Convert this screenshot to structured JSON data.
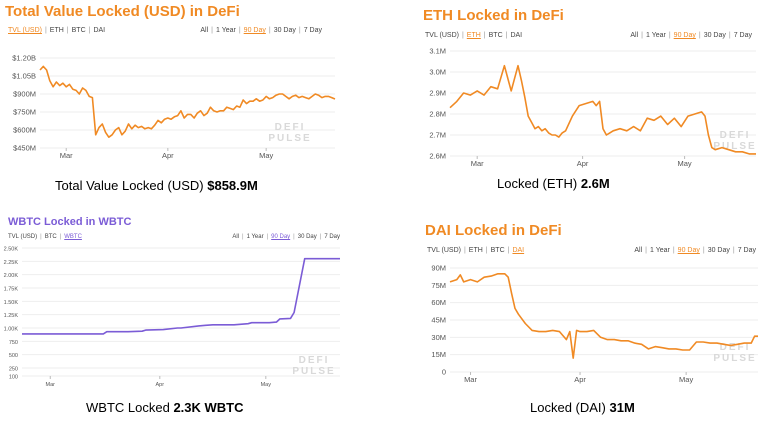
{
  "colors": {
    "accent": "#f08a24",
    "wbtc": "#7b5cd6",
    "grid": "#eeeeee",
    "axis": "#555555",
    "watermark": "#d9d9d9"
  },
  "watermark": [
    "DEFI",
    "PULSE"
  ],
  "panels": [
    {
      "title": "Total Value Locked (USD) in DeFi",
      "tabs_left": [
        "TVL (USD)",
        "ETH",
        "BTC",
        "DAI"
      ],
      "tabs_left_active": 0,
      "tabs_right": [
        "All",
        "1 Year",
        "90 Day",
        "30 Day",
        "7 Day"
      ],
      "tabs_right_active": 2,
      "caption": {
        "label": "Total Value Locked (USD)",
        "value": "$858.9M"
      }
    },
    {
      "title": "ETH Locked in DeFi",
      "tabs_left": [
        "TVL (USD)",
        "ETH",
        "BTC",
        "DAI"
      ],
      "tabs_left_active": 1,
      "tabs_right": [
        "All",
        "1 Year",
        "90 Day",
        "30 Day",
        "7 Day"
      ],
      "tabs_right_active": 2,
      "caption": {
        "label": "Locked (ETH)",
        "value": "2.6M"
      }
    },
    {
      "title": "WBTC Locked in WBTC",
      "tabs_left": [
        "TVL (USD)",
        "BTC",
        "WBTC"
      ],
      "tabs_left_active": 2,
      "tabs_right": [
        "All",
        "1 Year",
        "90 Day",
        "30 Day",
        "7 Day"
      ],
      "tabs_right_active": 2,
      "caption": {
        "label": "WBTC Locked",
        "value": "2.3K WBTC"
      }
    },
    {
      "title": "DAI Locked in DeFi",
      "tabs_left": [
        "TVL (USD)",
        "ETH",
        "BTC",
        "DAI"
      ],
      "tabs_left_active": 3,
      "tabs_right": [
        "All",
        "1 Year",
        "90 Day",
        "30 Day",
        "7 Day"
      ],
      "tabs_right_active": 2,
      "caption": {
        "label": "Locked (DAI)",
        "value": "31M"
      }
    }
  ],
  "chart_data": [
    {
      "type": "line",
      "title": "Total Value Locked (USD) in DeFi",
      "ylim": [
        450,
        1200
      ],
      "yticks": [
        450,
        600,
        750,
        900,
        1050,
        1200
      ],
      "ytick_labels": [
        "$450M",
        "$600M",
        "$750M",
        "$900M",
        "$1.05B",
        "$1.20B"
      ],
      "xlim": [
        0,
        90
      ],
      "xticks": [
        8,
        39,
        69
      ],
      "xtick_labels": [
        "Mar",
        "Apr",
        "May"
      ],
      "grid": true,
      "series": [
        {
          "x": [
            0,
            1,
            2,
            3,
            4,
            5,
            6,
            7,
            8,
            9,
            10,
            11,
            12,
            13,
            14,
            15,
            16,
            17,
            18,
            19,
            20,
            21,
            22,
            23,
            24,
            25,
            26,
            27,
            28,
            29,
            30,
            31,
            32,
            33,
            34,
            35,
            36,
            37,
            38,
            39,
            40,
            41,
            42,
            43,
            44,
            45,
            46,
            47,
            48,
            49,
            50,
            51,
            52,
            53,
            54,
            55,
            56,
            57,
            58,
            59,
            60,
            61,
            62,
            63,
            64,
            65,
            66,
            67,
            68,
            69,
            70,
            71,
            72,
            73,
            74,
            75,
            76,
            77,
            78,
            79,
            80,
            81,
            82,
            83,
            84,
            85,
            86,
            87,
            88,
            89,
            90
          ],
          "y": [
            1100,
            1130,
            1100,
            1010,
            960,
            1000,
            970,
            990,
            960,
            980,
            940,
            930,
            900,
            950,
            930,
            880,
            870,
            560,
            620,
            650,
            580,
            540,
            560,
            600,
            620,
            560,
            590,
            650,
            610,
            640,
            620,
            630,
            610,
            620,
            610,
            640,
            680,
            660,
            690,
            700,
            690,
            710,
            720,
            760,
            700,
            730,
            730,
            700,
            740,
            760,
            720,
            740,
            790,
            760,
            750,
            760,
            760,
            790,
            780,
            770,
            800,
            790,
            850,
            820,
            840,
            840,
            860,
            840,
            850,
            880,
            860,
            870,
            890,
            900,
            900,
            880,
            860,
            880,
            890,
            870,
            880,
            870,
            860,
            880,
            900,
            890,
            870,
            880,
            880,
            870,
            858
          ]
        }
      ]
    },
    {
      "type": "line",
      "title": "ETH Locked in DeFi",
      "ylim": [
        2.6,
        3.1
      ],
      "yticks": [
        2.6,
        2.7,
        2.8,
        2.9,
        3.0,
        3.1
      ],
      "ytick_labels": [
        "2.6M",
        "2.7M",
        "2.8M",
        "2.9M",
        "3.0M",
        "3.1M"
      ],
      "xlim": [
        0,
        90
      ],
      "xticks": [
        8,
        39,
        69
      ],
      "xtick_labels": [
        "Mar",
        "Apr",
        "May"
      ],
      "grid": true,
      "series": [
        {
          "x": [
            0,
            2,
            4,
            6,
            8,
            10,
            12,
            14,
            16,
            18,
            20,
            21,
            22,
            23,
            24,
            25,
            26,
            27,
            28,
            29,
            30,
            31,
            32,
            33,
            34,
            36,
            38,
            40,
            42,
            43,
            44,
            45,
            46,
            47,
            48,
            50,
            52,
            54,
            56,
            58,
            60,
            62,
            64,
            66,
            68,
            70,
            72,
            74,
            75,
            76,
            77,
            78,
            80,
            82,
            84,
            86,
            88,
            90
          ],
          "y": [
            2.83,
            2.86,
            2.9,
            2.89,
            2.91,
            2.89,
            2.93,
            2.92,
            3.03,
            2.91,
            3.03,
            2.96,
            2.88,
            2.79,
            2.76,
            2.73,
            2.74,
            2.72,
            2.73,
            2.71,
            2.7,
            2.7,
            2.69,
            2.71,
            2.72,
            2.79,
            2.84,
            2.85,
            2.86,
            2.84,
            2.86,
            2.73,
            2.7,
            2.71,
            2.72,
            2.73,
            2.72,
            2.74,
            2.72,
            2.78,
            2.77,
            2.79,
            2.75,
            2.78,
            2.74,
            2.79,
            2.8,
            2.81,
            2.79,
            2.7,
            2.64,
            2.63,
            2.64,
            2.63,
            2.62,
            2.62,
            2.61,
            2.61
          ]
        }
      ]
    },
    {
      "type": "line",
      "title": "WBTC Locked in WBTC",
      "ylim": [
        100,
        2500
      ],
      "yticks": [
        100,
        250,
        500,
        750,
        1000,
        1250,
        1500,
        1750,
        2000,
        2250,
        2500
      ],
      "ytick_labels": [
        "100",
        "250",
        "500",
        "750",
        "1.00K",
        "1.25K",
        "1.50K",
        "1.75K",
        "2.00K",
        "2.25K",
        "2.50K"
      ],
      "xlim": [
        0,
        90
      ],
      "xticks": [
        8,
        39,
        69
      ],
      "xtick_labels": [
        "Mar",
        "Apr",
        "May"
      ],
      "grid": true,
      "series": [
        {
          "x": [
            0,
            10,
            20,
            23,
            24,
            30,
            34,
            35,
            40,
            44,
            45,
            50,
            52,
            54,
            55,
            60,
            64,
            65,
            70,
            72,
            73,
            76,
            77,
            80,
            90
          ],
          "y": [
            890,
            890,
            890,
            890,
            930,
            930,
            940,
            960,
            970,
            1000,
            1000,
            1040,
            1050,
            1060,
            1060,
            1060,
            1080,
            1100,
            1100,
            1110,
            1170,
            1180,
            1290,
            2300,
            2300
          ]
        }
      ]
    },
    {
      "type": "line",
      "title": "DAI Locked in DeFi",
      "ylim": [
        0,
        90
      ],
      "yticks": [
        0,
        15,
        30,
        45,
        60,
        75,
        90
      ],
      "ytick_labels": [
        "0",
        "15M",
        "30M",
        "45M",
        "60M",
        "75M",
        "90M"
      ],
      "xlim": [
        0,
        90
      ],
      "xticks": [
        6,
        38,
        69
      ],
      "xtick_labels": [
        "Mar",
        "Apr",
        "May"
      ],
      "grid": true,
      "series": [
        {
          "x": [
            0,
            2,
            3,
            4,
            6,
            8,
            10,
            12,
            14,
            16,
            17,
            18,
            19,
            20,
            22,
            24,
            26,
            28,
            30,
            32,
            34,
            35,
            36,
            37,
            38,
            40,
            42,
            44,
            46,
            48,
            50,
            52,
            54,
            56,
            58,
            60,
            62,
            64,
            66,
            68,
            70,
            72,
            74,
            76,
            78,
            80,
            82,
            84,
            86,
            88,
            89,
            90
          ],
          "y": [
            78,
            80,
            84,
            78,
            80,
            78,
            82,
            83,
            85,
            85,
            82,
            68,
            55,
            50,
            42,
            36,
            35,
            35,
            36,
            35,
            28,
            35,
            12,
            36,
            35,
            35,
            36,
            30,
            28,
            28,
            27,
            27,
            25,
            24,
            20,
            22,
            21,
            20,
            20,
            19,
            19,
            26,
            26,
            25,
            25,
            24,
            23,
            24,
            25,
            25,
            31,
            31
          ]
        }
      ]
    }
  ]
}
